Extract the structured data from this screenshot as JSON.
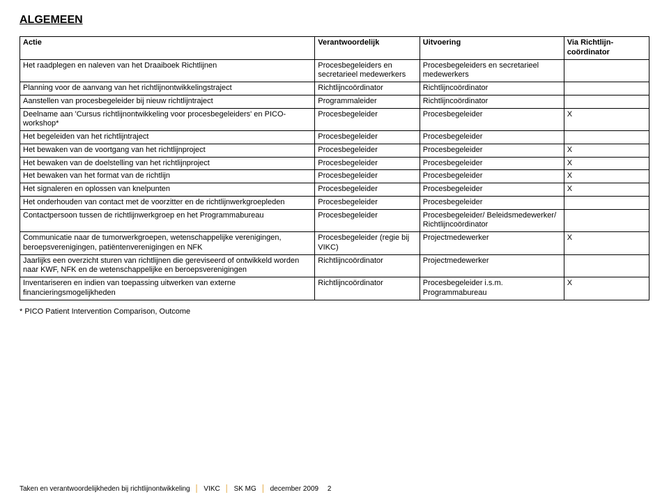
{
  "title": "ALGEMEEN",
  "headers": {
    "actie": "Actie",
    "verantwoordelijk": "Verantwoordelijk",
    "uitvoering": "Uitvoering",
    "via": "Via Richtlijn-coördinator"
  },
  "rows": {
    "r0": {
      "a": "Het raadplegen en naleven van het Draaiboek Richtlijnen",
      "v": "Procesbegeleiders en secretarieel medewerkers",
      "u": "Procesbegeleiders en secretarieel medewerkers",
      "x": ""
    },
    "r1": {
      "a": "Planning voor de aanvang van het richtlijnontwikkelingstraject",
      "v": "Richtlijncoördinator",
      "u": "Richtlijncoördinator",
      "x": ""
    },
    "r2": {
      "a": "Aanstellen van procesbegeleider bij nieuw richtlijntraject",
      "v": "Programmaleider",
      "u": "Richtlijncoördinator",
      "x": ""
    },
    "r3": {
      "a": "Deelname aan 'Cursus richtlijnontwikkeling voor procesbegeleiders' en PICO-workshop*",
      "v": "Procesbegeleider",
      "u": "Procesbegeleider",
      "x": "X"
    },
    "r4": {
      "a": "Het begeleiden van het richtlijntraject",
      "v": "Procesbegeleider",
      "u": "Procesbegeleider",
      "x": ""
    },
    "r5": {
      "a": "Het bewaken van de voortgang van het richtlijnproject",
      "v": "Procesbegeleider",
      "u": "Procesbegeleider",
      "x": "X"
    },
    "r6": {
      "a": "Het bewaken van de doelstelling van het richtlijnproject",
      "v": "Procesbegeleider",
      "u": "Procesbegeleider",
      "x": "X"
    },
    "r7": {
      "a": "Het bewaken van het format van de richtlijn",
      "v": "Procesbegeleider",
      "u": "Procesbegeleider",
      "x": "X"
    },
    "r8": {
      "a": "Het signaleren en oplossen van knelpunten",
      "v": "Procesbegeleider",
      "u": "Procesbegeleider",
      "x": "X"
    },
    "r9": {
      "a": "Het onderhouden van contact met de voorzitter en de richtlijnwerkgroepleden",
      "v": "Procesbegeleider",
      "u": "Procesbegeleider",
      "x": ""
    },
    "r10": {
      "a": "Contactpersoon tussen de richtlijnwerkgroep en het Programmabureau",
      "v": "Procesbegeleider",
      "u": "Procesbegeleider/ Beleidsmedewerker/ Richtlijncoördinator",
      "x": ""
    },
    "r11": {
      "a": "Communicatie naar de tumorwerkgroepen, wetenschappelijke verenigingen, beroepsverenigingen, patiëntenverenigingen en NFK",
      "v": "Procesbegeleider (regie bij VIKC)",
      "u": "Projectmedewerker",
      "x": "X"
    },
    "r12": {
      "a": "Jaarlijks een overzicht sturen van richtlijnen die gereviseerd of ontwikkeld worden naar KWF, NFK en de wetenschappelijke en beroepsverenigingen",
      "v": "Richtlijncoördinator",
      "u": "Projectmedewerker",
      "x": ""
    },
    "r13": {
      "a": "Inventariseren en indien van toepassing uitwerken van externe financieringsmogelijkheden",
      "v": "Richtlijncoördinator",
      "u": "Procesbegeleider i.s.m. Programmabureau",
      "x": "X"
    }
  },
  "footnote": "* PICO Patient Intervention Comparison, Outcome",
  "footer": {
    "left": "Taken en verantwoordelijkheden bij richtlijnontwikkeling",
    "mid": "VIKC",
    "right": "SK MG",
    "date": "december 2009",
    "page": "2"
  }
}
